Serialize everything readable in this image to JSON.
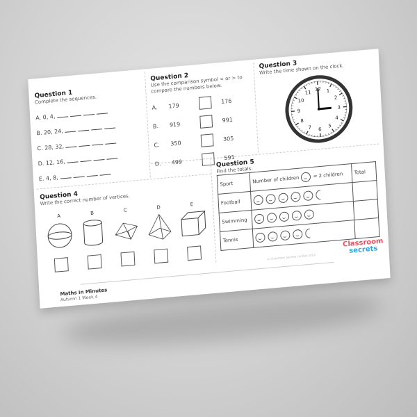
{
  "q1": {
    "title": "Question 1",
    "instruction": "Complete the sequences.",
    "items": [
      "A. 0, 4,",
      "B. 20, 24,",
      "C. 28, 32,",
      "D. 12, 16,",
      "E. 4, 8,"
    ]
  },
  "q2": {
    "title": "Question 2",
    "instruction": "Use the comparison symbol < or > to compare the numbers below.",
    "rows": [
      {
        "label": "A.",
        "a": "179",
        "b": "176"
      },
      {
        "label": "B.",
        "a": "919",
        "b": "991"
      },
      {
        "label": "C.",
        "a": "350",
        "b": "305"
      },
      {
        "label": "D.",
        "a": "499",
        "b": "591"
      }
    ]
  },
  "q3": {
    "title": "Question 3",
    "instruction": "Write the time shown on the clock.",
    "clock": {
      "hour": 3,
      "minute": 0
    },
    "numbers": [
      "12",
      "1",
      "2",
      "3",
      "4",
      "5",
      "6",
      "7",
      "8",
      "9",
      "10",
      "11"
    ]
  },
  "q4": {
    "title": "Question 4",
    "instruction": "Write the correct number of vertices.",
    "shapes": [
      {
        "label": "A",
        "icon": "sphere"
      },
      {
        "label": "B",
        "icon": "cylinder"
      },
      {
        "label": "C",
        "icon": "triangular-prism"
      },
      {
        "label": "D",
        "icon": "square-pyramid"
      },
      {
        "label": "E",
        "icon": "cube"
      }
    ]
  },
  "q5": {
    "title": "Question 5",
    "instruction": "Find the totals.",
    "headers": {
      "sport": "Sport",
      "number": "Number of children",
      "key": "= 2 children",
      "total": "Total"
    },
    "rows": [
      {
        "sport": "Football",
        "full": 5,
        "half": 1
      },
      {
        "sport": "Swimming",
        "full": 5,
        "half": 0
      },
      {
        "sport": "Tennis",
        "full": 4,
        "half": 1
      }
    ]
  },
  "footer": {
    "title": "Maths in Minutes",
    "subtitle": "Autumn 1 Week 4",
    "copyright": "© Classroom Secrets Limited 2024",
    "logo_line1": "Classroom",
    "logo_line2": "secrets"
  },
  "colors": {
    "logo_red": "#f04e5e",
    "logo_blue": "#2fa7e0",
    "logo_yellow": "#f7b52c"
  }
}
